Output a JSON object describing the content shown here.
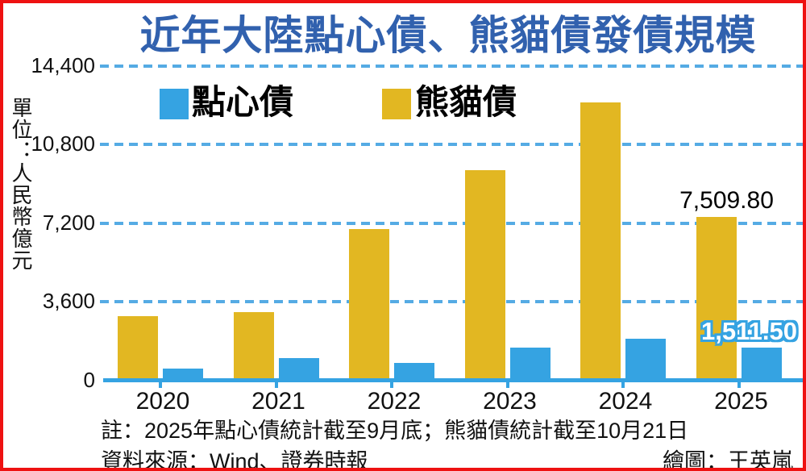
{
  "title": "近年大陸點心債、熊貓債發債規模",
  "unit_label": "單位：人民幣億元",
  "legend": {
    "items": [
      {
        "label": "點心債",
        "color": "#35a3e2"
      },
      {
        "label": "熊貓債",
        "color": "#e2b722"
      }
    ]
  },
  "chart_data": {
    "type": "bar",
    "title": "近年大陸點心債、熊貓債發債規模",
    "ylabel": "單位：人民幣億元",
    "categories": [
      "2020",
      "2021",
      "2022",
      "2023",
      "2024",
      "2025"
    ],
    "series": [
      {
        "name": "熊貓債",
        "color": "#e2b722",
        "values": [
          2950,
          3130,
          6930,
          9650,
          12750,
          7509.8
        ]
      },
      {
        "name": "點心債",
        "color": "#35a3e2",
        "values": [
          550,
          1040,
          800,
          1500,
          1930,
          1511.5
        ]
      }
    ],
    "ylim": [
      0,
      14400
    ],
    "y_ticks": [
      "14,400",
      "10,800",
      "7,200",
      "3,600",
      "0"
    ],
    "y_tick_values": [
      14400,
      10800,
      7200,
      3600,
      0
    ],
    "grid": "horizontal-dashed",
    "legend_position": "top",
    "value_labels": [
      {
        "category": "2025",
        "series": "熊貓債",
        "text": "7,509.80",
        "style": "black"
      },
      {
        "category": "2025",
        "series": "點心債",
        "text": "1,511.50",
        "style": "white-on-blue"
      }
    ]
  },
  "footer": {
    "note": "註：2025年點心債統計截至9月底；熊貓債統計截至10月21日",
    "source": "資料來源：Wind、證券時報",
    "credit": "繪圖：王英嵐"
  },
  "colors": {
    "title": "#3161ae",
    "bar_yellow": "#e2b722",
    "bar_blue": "#35a3e2",
    "gridline": "#55abe4",
    "axis": "#35a3e2",
    "border": "#ee1111",
    "text": "#111111",
    "background": "#ffffff"
  }
}
